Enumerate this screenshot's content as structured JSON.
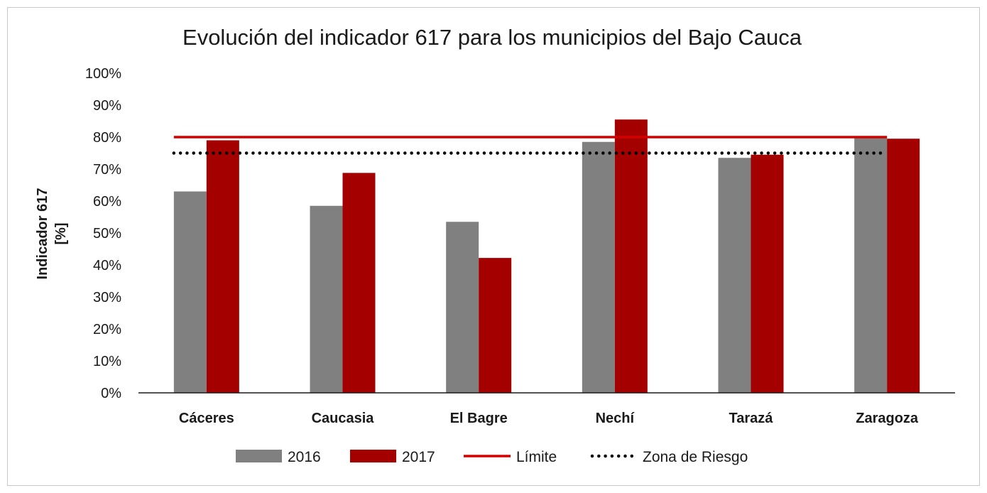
{
  "chart_data": {
    "type": "bar",
    "title": "Evolución del indicador 617 para los municipios del Bajo Cauca",
    "ylabel_line1": "Indicador 617",
    "ylabel_line2": "[%]",
    "xlabel": "",
    "categories": [
      "Cáceres",
      "Caucasia",
      "El Bagre",
      "Nechí",
      "Tarazá",
      "Zaragoza"
    ],
    "yticks": [
      "0%",
      "10%",
      "20%",
      "30%",
      "40%",
      "50%",
      "60%",
      "70%",
      "80%",
      "90%",
      "100%"
    ],
    "ylim": [
      0,
      100
    ],
    "series": [
      {
        "name": "2016",
        "values": [
          63,
          58.5,
          53.5,
          78.5,
          73.5,
          80
        ],
        "color": "#808080"
      },
      {
        "name": "2017",
        "values": [
          79,
          68.8,
          42.2,
          85.5,
          74.5,
          79.5
        ],
        "color": "#a50000"
      }
    ],
    "reference_lines": [
      {
        "name": "Límite",
        "value": 80,
        "color": "#d40000",
        "style": "solid"
      },
      {
        "name": "Zona de Riesgo",
        "value": 75,
        "color": "#000000",
        "style": "dotted"
      }
    ],
    "grid": false,
    "legend_position": "bottom"
  }
}
